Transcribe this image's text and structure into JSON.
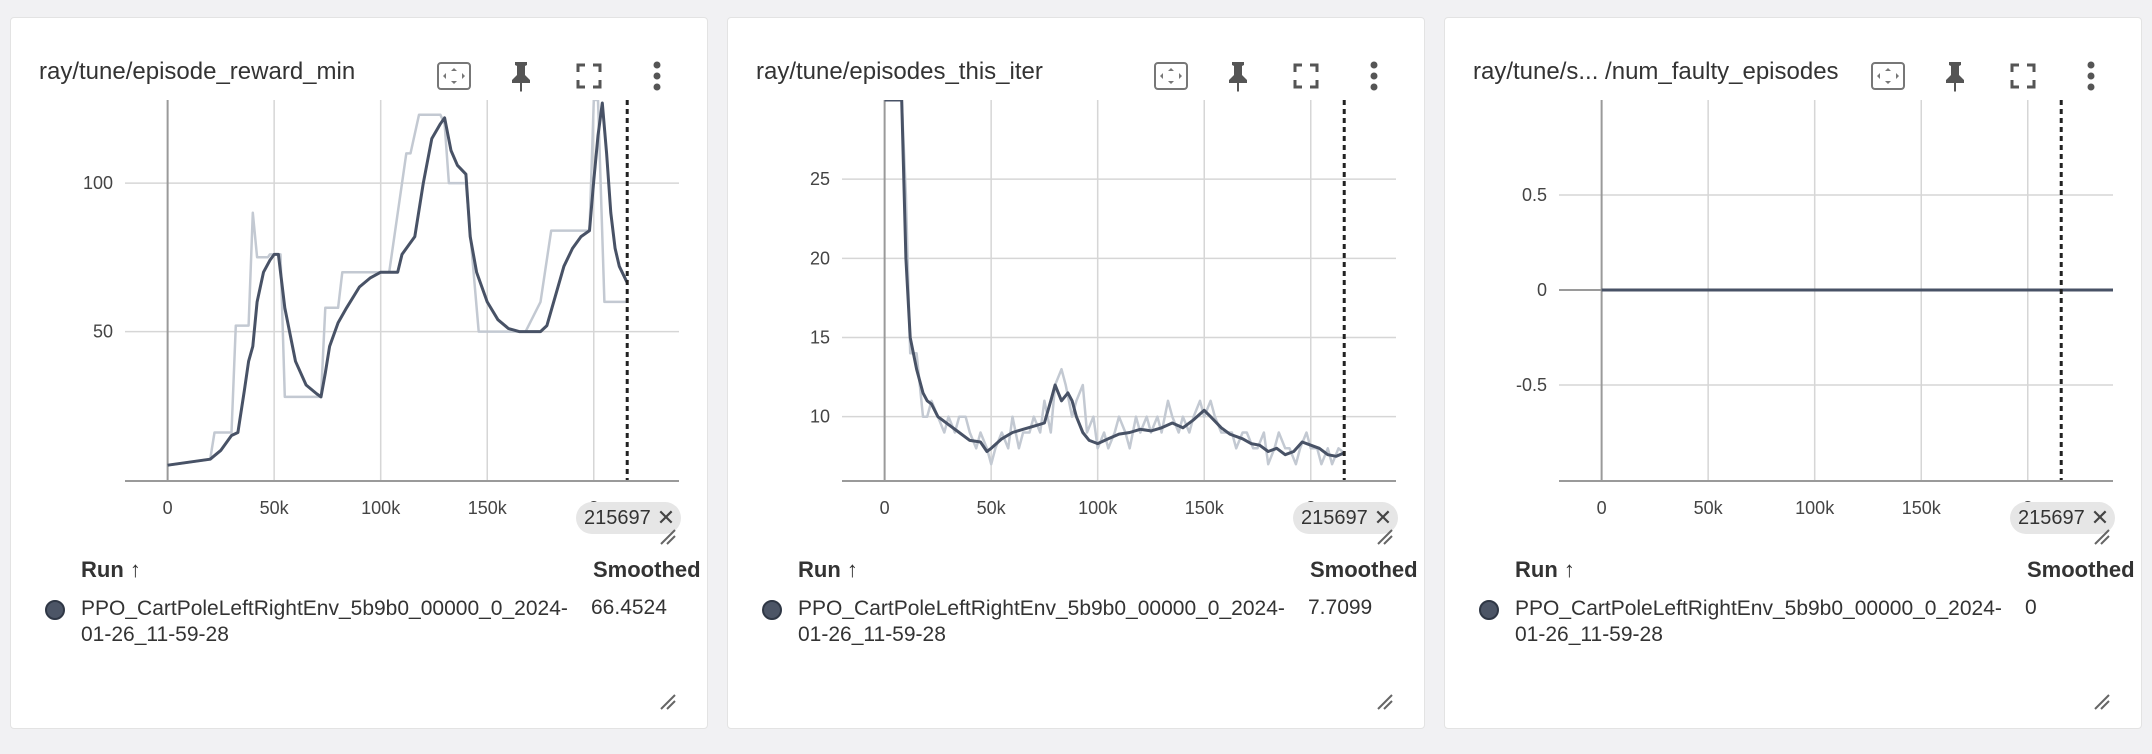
{
  "cards": [
    {
      "title": "ray/tune/episode_reward_min",
      "step_badge": "215697",
      "runs_header": {
        "run": "Run ↑",
        "smoothed": "Smoothed"
      },
      "run": {
        "name": "PPO_CartPoleLeftRightEnv_5b9b0_00000_0_2024-01-26_11-59-28",
        "smoothed_value": "66.4524"
      },
      "x_ticks": [
        "0",
        "50k",
        "100k",
        "150k",
        "2"
      ],
      "y_ticks": [
        "50",
        "100"
      ]
    },
    {
      "title": "ray/tune/episodes_this_iter",
      "step_badge": "215697",
      "runs_header": {
        "run": "Run ↑",
        "smoothed": "Smoothed"
      },
      "run": {
        "name": "PPO_CartPoleLeftRightEnv_5b9b0_00000_0_2024-01-26_11-59-28",
        "smoothed_value": "7.7099"
      },
      "x_ticks": [
        "0",
        "50k",
        "100k",
        "150k",
        "2"
      ],
      "y_ticks": [
        "10",
        "15",
        "20",
        "25"
      ]
    },
    {
      "title": "ray/tune/s... /num_faulty_episodes",
      "step_badge": "215697",
      "runs_header": {
        "run": "Run ↑",
        "smoothed": "Smoothed"
      },
      "run": {
        "name": "PPO_CartPoleLeftRightEnv_5b9b0_00000_0_2024-01-26_11-59-28",
        "smoothed_value": "0"
      },
      "x_ticks": [
        "0",
        "50k",
        "100k",
        "150k",
        "2"
      ],
      "y_ticks": [
        "-0.5",
        "0",
        "0.5"
      ]
    }
  ],
  "icons": {
    "fit": "fit-to-data-icon",
    "pin": "pin-icon",
    "fullscreen": "fullscreen-icon",
    "more": "more-vert-icon"
  },
  "colors": {
    "smoothed_line": "#485266",
    "raw_line": "#c3c9d2",
    "grid": "#d6d6d6",
    "axis": "#9a9a9a",
    "step_marker": "#222222"
  },
  "chart_data": [
    {
      "type": "line",
      "title": "ray/tune/episode_reward_min",
      "xlabel": "",
      "ylabel": "",
      "xlim": [
        -20000,
        240000
      ],
      "ylim": [
        0,
        128
      ],
      "marker_step": 215697,
      "series": [
        {
          "name": "",
          "style": "raw",
          "x": [
            0,
            20000,
            22000,
            30000,
            32000,
            38000,
            40000,
            42000,
            47000,
            48000,
            50000,
            53000,
            55000,
            72000,
            74000,
            80000,
            82000,
            90000,
            100000,
            104000,
            112000,
            114000,
            118000,
            120000,
            122000,
            128000,
            130000,
            132000,
            134000,
            140000,
            146000,
            152000,
            158000,
            162000,
            168000,
            175000,
            180000,
            184000,
            190000,
            198000,
            200000,
            202000,
            205000,
            208000,
            210000,
            213000,
            215697
          ],
          "y": [
            5,
            7,
            16,
            16,
            52,
            52,
            90,
            75,
            75,
            76,
            76,
            76,
            28,
            28,
            58,
            58,
            70,
            70,
            70,
            70,
            110,
            110,
            123,
            123,
            123,
            123,
            120,
            100,
            100,
            100,
            50,
            50,
            50,
            50,
            50,
            60,
            84,
            84,
            84,
            84,
            128,
            128,
            60,
            60,
            60,
            60,
            60
          ]
        },
        {
          "name": "",
          "style": "smoothed",
          "x": [
            0,
            10000,
            20000,
            25000,
            30000,
            33000,
            36000,
            38000,
            40000,
            42000,
            45000,
            48000,
            50000,
            52000,
            55000,
            60000,
            65000,
            70000,
            72000,
            74000,
            76000,
            80000,
            84000,
            90000,
            95000,
            100000,
            104000,
            108000,
            110000,
            113000,
            116000,
            120000,
            124000,
            128000,
            130000,
            133000,
            136000,
            140000,
            142000,
            145000,
            150000,
            155000,
            160000,
            165000,
            170000,
            175000,
            178000,
            182000,
            186000,
            190000,
            194000,
            198000,
            200000,
            202000,
            204000,
            206000,
            208000,
            210000,
            212000,
            215697
          ],
          "y": [
            5,
            6,
            7,
            10,
            15,
            16,
            30,
            40,
            45,
            60,
            70,
            74,
            76,
            76,
            58,
            40,
            32,
            29,
            28,
            36,
            45,
            53,
            58,
            65,
            68,
            70,
            70,
            70,
            76,
            79,
            82,
            100,
            115,
            120,
            122,
            111,
            106,
            103,
            82,
            70,
            60,
            54,
            51,
            50,
            50,
            50,
            52,
            62,
            72,
            78,
            82,
            84,
            101,
            116,
            127,
            110,
            90,
            78,
            72,
            66.4524
          ]
        }
      ]
    },
    {
      "type": "line",
      "title": "ray/tune/episodes_this_iter",
      "xlabel": "",
      "ylabel": "",
      "xlim": [
        -20000,
        240000
      ],
      "ylim": [
        6,
        30
      ],
      "marker_step": 215697,
      "series": [
        {
          "name": "",
          "style": "raw",
          "x": [
            0,
            8000,
            10000,
            12000,
            15000,
            18000,
            20000,
            22000,
            25000,
            28000,
            30000,
            33000,
            35000,
            38000,
            40000,
            43000,
            45000,
            48000,
            50000,
            52000,
            55000,
            58000,
            60000,
            63000,
            65000,
            68000,
            70000,
            73000,
            75000,
            78000,
            80000,
            83000,
            85000,
            88000,
            90000,
            93000,
            95000,
            98000,
            100000,
            103000,
            105000,
            108000,
            110000,
            113000,
            115000,
            118000,
            120000,
            123000,
            125000,
            128000,
            130000,
            133000,
            135000,
            138000,
            140000,
            143000,
            145000,
            148000,
            150000,
            153000,
            155000,
            158000,
            160000,
            163000,
            165000,
            168000,
            170000,
            173000,
            175000,
            178000,
            180000,
            183000,
            185000,
            188000,
            190000,
            193000,
            195000,
            198000,
            200000,
            203000,
            205000,
            208000,
            210000,
            213000,
            215697
          ],
          "y": [
            30,
            30,
            24,
            14,
            14,
            10,
            10,
            11,
            10,
            9,
            10,
            9,
            10,
            10,
            9,
            8,
            9,
            8,
            7,
            8,
            9,
            8,
            10,
            8,
            9,
            9,
            10,
            9,
            11,
            9,
            12,
            13,
            12,
            10,
            11,
            12,
            9,
            10,
            8,
            9,
            8,
            9,
            10,
            9,
            8,
            10,
            9,
            10,
            9,
            10,
            9,
            11,
            10,
            9,
            10,
            9,
            10,
            11,
            10,
            11,
            10,
            9,
            9,
            9,
            8,
            9,
            9,
            8,
            8,
            9,
            7,
            8,
            9,
            8,
            8,
            7,
            8,
            9,
            8,
            8,
            7,
            8,
            7,
            8,
            7.7
          ]
        },
        {
          "name": "",
          "style": "smoothed",
          "x": [
            0,
            8000,
            10000,
            12000,
            15000,
            18000,
            20000,
            22000,
            25000,
            28000,
            30000,
            35000,
            40000,
            45000,
            48000,
            50000,
            55000,
            60000,
            65000,
            70000,
            75000,
            78000,
            80000,
            83000,
            86000,
            88000,
            90000,
            93000,
            96000,
            100000,
            105000,
            110000,
            115000,
            120000,
            125000,
            130000,
            135000,
            140000,
            145000,
            150000,
            153000,
            158000,
            162000,
            168000,
            172000,
            176000,
            180000,
            184000,
            188000,
            192000,
            196000,
            200000,
            204000,
            208000,
            212000,
            215697
          ],
          "y": [
            30,
            30,
            20,
            15,
            13,
            11.5,
            11,
            10.8,
            10,
            9.7,
            9.5,
            9,
            8.5,
            8.4,
            7.8,
            8,
            8.6,
            9,
            9.2,
            9.4,
            9.6,
            11,
            12,
            11,
            11.5,
            11,
            10,
            9,
            8.5,
            8.3,
            8.6,
            8.9,
            9,
            9.2,
            9.1,
            9.3,
            9.6,
            9.3,
            9.8,
            10.4,
            10,
            9.3,
            8.9,
            8.6,
            8.3,
            8.2,
            7.8,
            8,
            7.6,
            7.8,
            8.4,
            8.2,
            8,
            7.6,
            7.5,
            7.7099
          ]
        }
      ]
    },
    {
      "type": "line",
      "title": "ray/tune/s... /num_faulty_episodes",
      "xlabel": "",
      "ylabel": "",
      "xlim": [
        -20000,
        240000
      ],
      "ylim": [
        -1,
        1
      ],
      "marker_step": 215697,
      "series": [
        {
          "name": "",
          "style": "smoothed",
          "x": [
            0,
            215697,
            240000
          ],
          "y": [
            0,
            0,
            0
          ]
        }
      ]
    }
  ]
}
